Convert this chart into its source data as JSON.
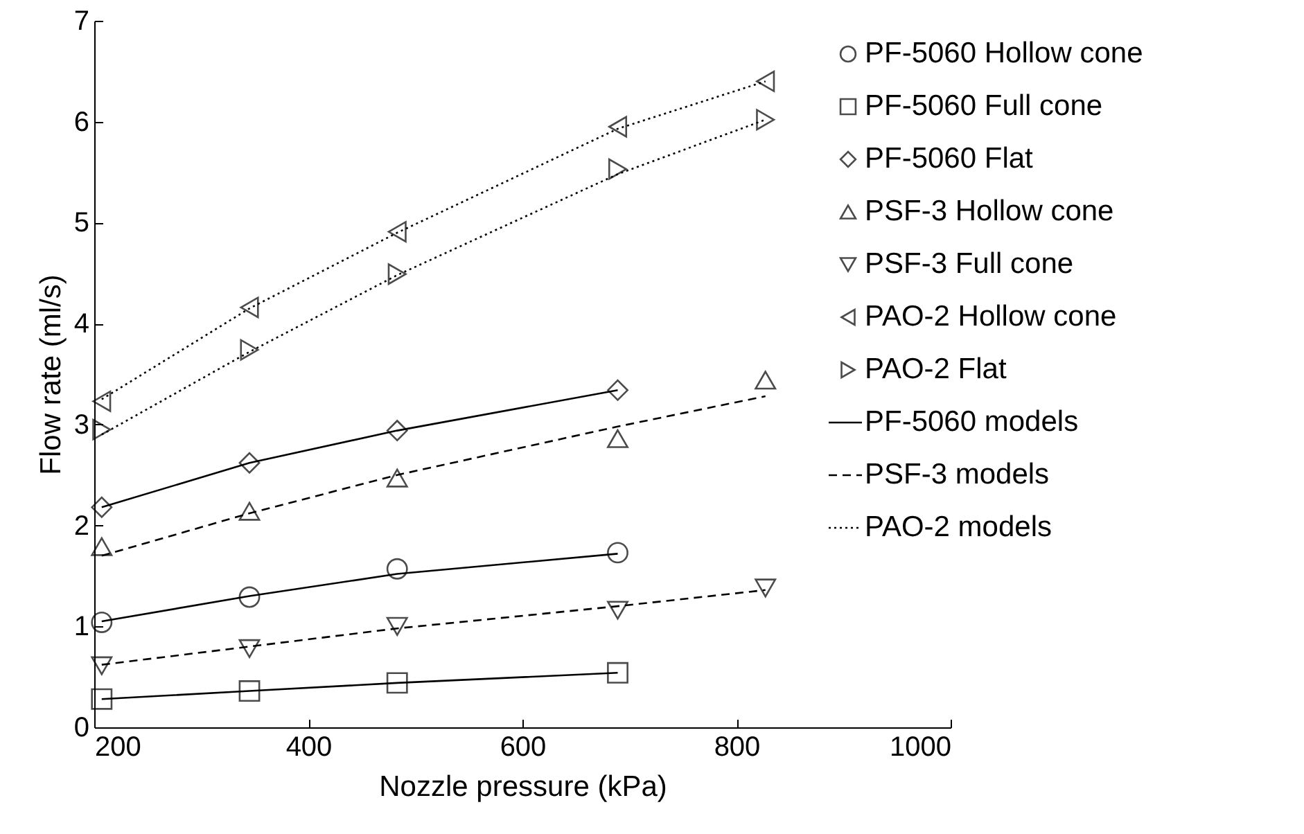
{
  "chart_data": {
    "type": "scatter",
    "xlabel": "Nozzle pressure (kPa)",
    "ylabel": "Flow rate (ml/s)",
    "xlim": [
      200,
      1000
    ],
    "ylim": [
      0,
      7
    ],
    "xticks": [
      200,
      400,
      600,
      800,
      {
        "value": 1000,
        "label": "1000"
      }
    ],
    "yticks": [
      0,
      1,
      2,
      3,
      4,
      5,
      6,
      7
    ],
    "legend": "top right",
    "series": [
      {
        "name": "PF-5060 Hollow cone",
        "marker": "circle",
        "color": "#000000",
        "x": [
          207,
          345,
          483,
          689
        ],
        "values": [
          1.04,
          1.29,
          1.57,
          1.73
        ]
      },
      {
        "name": "PF-5060 Full cone",
        "marker": "square",
        "color": "#000000",
        "x": [
          207,
          345,
          483,
          689
        ],
        "values": [
          0.28,
          0.36,
          0.44,
          0.54
        ]
      },
      {
        "name": "PF-5060 Flat",
        "marker": "diamond",
        "color": "#000000",
        "x": [
          207,
          345,
          483,
          689
        ],
        "values": [
          2.18,
          2.62,
          2.94,
          3.34
        ]
      },
      {
        "name": "PSF-3 Hollow cone",
        "marker": "triangle",
        "color": "#000000",
        "x": [
          207,
          345,
          483,
          689,
          827
        ],
        "values": [
          1.79,
          2.14,
          2.47,
          2.86,
          3.44
        ]
      },
      {
        "name": "PSF-3 Full cone",
        "marker": "triangle-down",
        "color": "#000000",
        "x": [
          207,
          345,
          483,
          689,
          827
        ],
        "values": [
          0.61,
          0.78,
          1.0,
          1.16,
          1.38
        ]
      },
      {
        "name": "PAO-2 Hollow cone",
        "marker": "triangle-left",
        "color": "#000000",
        "x": [
          207,
          345,
          483,
          689,
          827
        ],
        "values": [
          3.23,
          4.16,
          4.91,
          5.95,
          6.4
        ]
      },
      {
        "name": "PAO-2 Flat",
        "marker": "triangle-right",
        "color": "#000000",
        "x": [
          207,
          345,
          483,
          689,
          827
        ],
        "values": [
          2.95,
          3.74,
          4.49,
          5.53,
          6.02
        ]
      },
      {
        "name": "PF-5060 models",
        "type": "line",
        "line_style": "solid",
        "color": "#000000",
        "x": [
          207,
          345,
          483,
          689
        ],
        "values": [
          1.05,
          1.3,
          1.52,
          1.72
        ]
      },
      {
        "type": "line",
        "line_style": "solid",
        "color": "#000000",
        "x": [
          207,
          345,
          483,
          689
        ],
        "values": [
          0.28,
          0.36,
          0.44,
          0.54
        ]
      },
      {
        "type": "line",
        "line_style": "solid",
        "color": "#000000",
        "x": [
          207,
          345,
          483,
          689
        ],
        "values": [
          2.18,
          2.62,
          2.94,
          3.34
        ]
      },
      {
        "name": "PSF-3 models",
        "type": "line",
        "line_style": "dashed",
        "color": "#000000",
        "x": [
          207,
          345,
          483,
          689,
          827
        ],
        "values": [
          1.7,
          2.12,
          2.5,
          2.98,
          3.28
        ]
      },
      {
        "type": "line",
        "line_style": "dashed",
        "color": "#000000",
        "x": [
          207,
          345,
          483,
          689,
          827
        ],
        "values": [
          0.62,
          0.8,
          0.98,
          1.2,
          1.36
        ]
      },
      {
        "name": "PAO-2 models",
        "type": "line",
        "line_style": "dotted",
        "color": "#000000",
        "x": [
          207,
          345,
          483,
          689,
          827
        ],
        "values": [
          3.25,
          4.15,
          4.9,
          5.93,
          6.4
        ]
      },
      {
        "type": "line",
        "line_style": "dotted",
        "color": "#000000",
        "x": [
          207,
          345,
          483,
          689,
          827
        ],
        "values": [
          2.9,
          3.72,
          4.48,
          5.48,
          6.02
        ]
      }
    ]
  }
}
